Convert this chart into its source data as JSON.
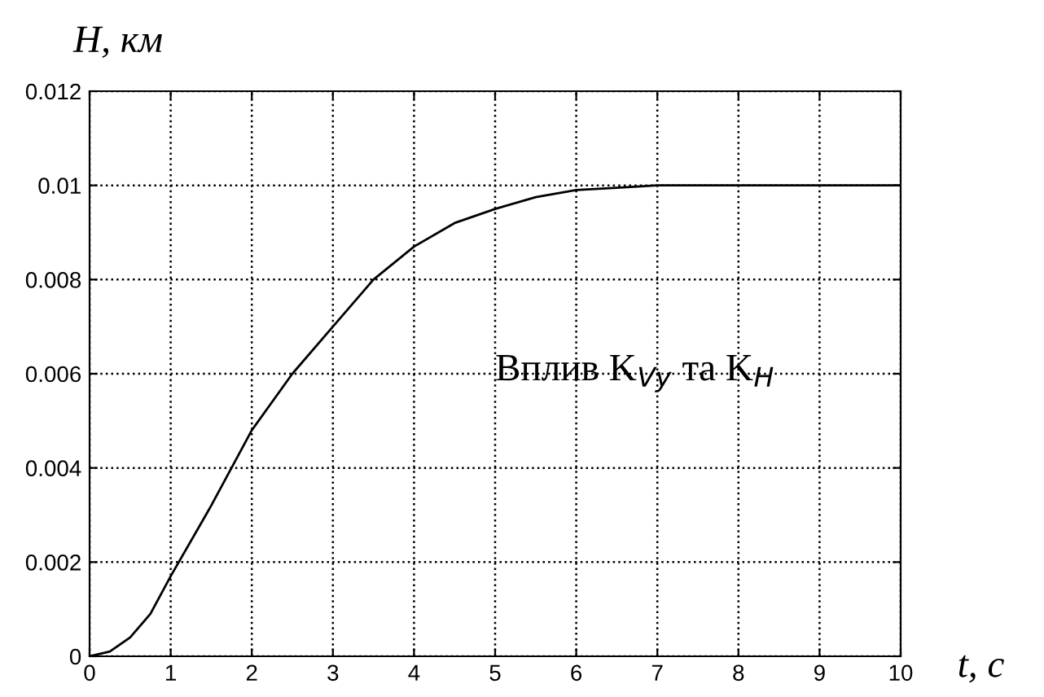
{
  "chart_data": {
    "type": "line",
    "xlabel": "t, с",
    "ylabel": "H, км",
    "annotations": [
      "Вплив K$_{Vy}$ та K$_{H}$"
    ],
    "x": [
      0,
      0.25,
      0.5,
      0.75,
      1,
      1.5,
      2,
      2.5,
      3,
      3.5,
      4,
      4.5,
      5,
      5.5,
      6,
      6.5,
      7,
      8,
      9,
      10
    ],
    "series": [
      {
        "color": "#000000",
        "values": [
          0,
          0.0001,
          0.0004,
          0.0009,
          0.0017,
          0.0032,
          0.0048,
          0.006,
          0.007,
          0.008,
          0.0087,
          0.0092,
          0.0095,
          0.00975,
          0.0099,
          0.00995,
          0.01,
          0.01,
          0.01,
          0.01
        ]
      }
    ],
    "xlim": [
      0,
      10
    ],
    "ylim": [
      0,
      0.012
    ],
    "xticks": [
      0,
      1,
      2,
      3,
      4,
      5,
      6,
      7,
      8,
      9,
      10
    ],
    "yticks": [
      0,
      0.002,
      0.004,
      0.006,
      0.008,
      0.01,
      0.012
    ],
    "grid": true,
    "line_style": "solid",
    "marker": "none"
  }
}
